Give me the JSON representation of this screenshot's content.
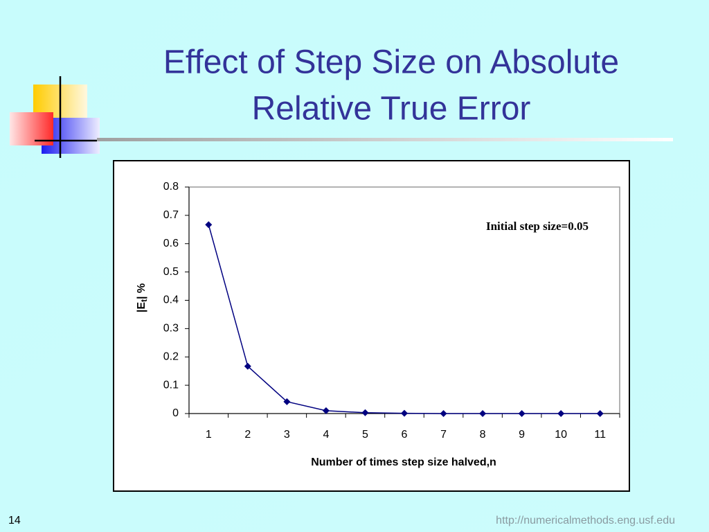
{
  "slide": {
    "title_lines": [
      "Effect of Step Size on Absolute",
      "Relative True Error"
    ],
    "page_number": "14",
    "url": "http://numericalmethods.eng.usf.edu"
  },
  "chart_data": {
    "type": "line",
    "categories": [
      "1",
      "2",
      "3",
      "4",
      "5",
      "6",
      "7",
      "8",
      "9",
      "10",
      "11"
    ],
    "values": [
      0.667,
      0.167,
      0.042,
      0.01,
      0.003,
      0.001,
      0,
      0,
      0,
      0,
      0
    ],
    "color": "#000080",
    "ylim": [
      0,
      0.8
    ],
    "yticks": [
      0,
      0.1,
      0.2,
      0.3,
      0.4,
      0.5,
      0.6,
      0.7,
      0.8
    ],
    "ylabel": {
      "main": "|E",
      "sub": "t",
      "end": "| %"
    },
    "xlabel": "Number of times step size halved,n",
    "annotation": "Initial step size=0.05"
  }
}
